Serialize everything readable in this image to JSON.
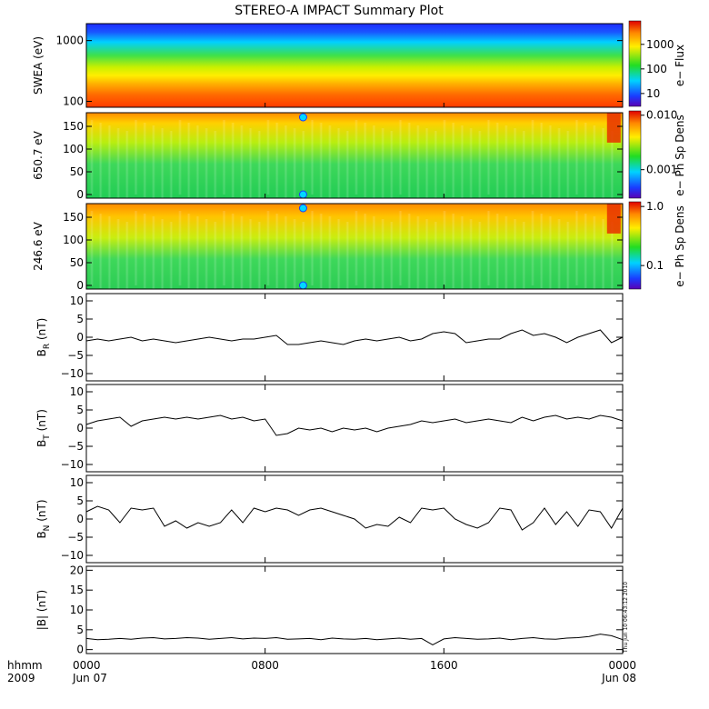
{
  "title": "STEREO-A IMPACT Summary Plot",
  "timestamp_text": "Thu Jun 10 06:43:12 2010",
  "time_axis": {
    "ticks": [
      {
        "hours": 0,
        "label": "0000",
        "date": "Jun 07"
      },
      {
        "hours": 8,
        "label": "0800",
        "date": ""
      },
      {
        "hours": 16,
        "label": "1600",
        "date": ""
      },
      {
        "hours": 24,
        "label": "0000",
        "date": "Jun 08"
      }
    ],
    "corner_label_top": "hhmm",
    "corner_label_bottom": "2009",
    "range_hours": [
      0,
      24
    ]
  },
  "spectrograms": [
    {
      "ylabel": "SWEA (eV)",
      "y_scale": "log",
      "ylim": [
        80,
        1900
      ],
      "yticks": [
        {
          "value": 100,
          "label": "100"
        },
        {
          "value": 1000,
          "label": "1000"
        }
      ],
      "colorbar": {
        "label": "e− Flux",
        "scale": "log",
        "range": [
          3,
          9000
        ],
        "ticks": [
          {
            "value": 10,
            "label": "10"
          },
          {
            "value": 100,
            "label": "100"
          },
          {
            "value": 1000,
            "label": "1000"
          }
        ]
      }
    },
    {
      "ylabel": "650.7 eV",
      "y_scale": "linear",
      "ylim": [
        -8,
        180
      ],
      "yticks": [
        {
          "value": 0,
          "label": "0"
        },
        {
          "value": 50,
          "label": "50"
        },
        {
          "value": 100,
          "label": "100"
        },
        {
          "value": 150,
          "label": "150"
        }
      ],
      "colorbar": {
        "label": "e− Ph Sp Dens",
        "scale": "log",
        "range": [
          0.0003,
          0.012
        ],
        "ticks": [
          {
            "value": 0.001,
            "label": "0.001"
          },
          {
            "value": 0.01,
            "label": "0.010"
          }
        ]
      }
    },
    {
      "ylabel": "246.6 eV",
      "y_scale": "linear",
      "ylim": [
        -8,
        180
      ],
      "yticks": [
        {
          "value": 0,
          "label": "0"
        },
        {
          "value": 50,
          "label": "50"
        },
        {
          "value": 100,
          "label": "100"
        },
        {
          "value": 150,
          "label": "150"
        }
      ],
      "colorbar": {
        "label": "e− Ph Sp Dens",
        "scale": "log",
        "range": [
          0.04,
          1.2
        ],
        "ticks": [
          {
            "value": 0.1,
            "label": "0.1"
          },
          {
            "value": 1.0,
            "label": "1.0"
          }
        ]
      }
    }
  ],
  "chart_data": [
    {
      "type": "line",
      "name": "BR",
      "ylabel_main": "B",
      "ylabel_sub": "R",
      "ylabel_unit": " (nT)",
      "ylim": [
        -12,
        12
      ],
      "yticks": [
        {
          "value": -10,
          "label": "−10"
        },
        {
          "value": -5,
          "label": "−5"
        },
        {
          "value": 0,
          "label": "0"
        },
        {
          "value": 5,
          "label": "5"
        },
        {
          "value": 10,
          "label": "10"
        }
      ],
      "x": [
        0,
        0.5,
        1,
        1.5,
        2,
        2.5,
        3,
        3.5,
        4,
        4.5,
        5,
        5.5,
        6,
        6.5,
        7,
        7.5,
        8,
        8.5,
        9,
        9.5,
        10,
        10.5,
        11,
        11.5,
        12,
        12.5,
        13,
        13.5,
        14,
        14.5,
        15,
        15.5,
        16,
        16.5,
        17,
        17.5,
        18,
        18.5,
        19,
        19.5,
        20,
        20.5,
        21,
        21.5,
        22,
        22.5,
        23,
        23.5,
        24
      ],
      "values": [
        -1,
        -0.5,
        -1,
        -0.5,
        0,
        -1,
        -0.5,
        -1,
        -1.5,
        -1,
        -0.5,
        0,
        -0.5,
        -1,
        -0.5,
        -0.5,
        0,
        0.5,
        -2,
        -2,
        -1.5,
        -1,
        -1.5,
        -2,
        -1,
        -0.5,
        -1,
        -0.5,
        0,
        -1,
        -0.5,
        1,
        1.5,
        1,
        -1.5,
        -1,
        -0.5,
        -0.5,
        1,
        2,
        0.5,
        1,
        0,
        -1.5,
        0,
        1,
        2,
        -1.5,
        0
      ]
    },
    {
      "type": "line",
      "name": "BT",
      "ylabel_main": "B",
      "ylabel_sub": "T",
      "ylabel_unit": " (nT)",
      "ylim": [
        -12,
        12
      ],
      "yticks": [
        {
          "value": -10,
          "label": "−10"
        },
        {
          "value": -5,
          "label": "−5"
        },
        {
          "value": 0,
          "label": "0"
        },
        {
          "value": 5,
          "label": "5"
        },
        {
          "value": 10,
          "label": "10"
        }
      ],
      "x": [
        0,
        0.5,
        1,
        1.5,
        2,
        2.5,
        3,
        3.5,
        4,
        4.5,
        5,
        5.5,
        6,
        6.5,
        7,
        7.5,
        8,
        8.5,
        9,
        9.5,
        10,
        10.5,
        11,
        11.5,
        12,
        12.5,
        13,
        13.5,
        14,
        14.5,
        15,
        15.5,
        16,
        16.5,
        17,
        17.5,
        18,
        18.5,
        19,
        19.5,
        20,
        20.5,
        21,
        21.5,
        22,
        22.5,
        23,
        23.5,
        24
      ],
      "values": [
        1,
        2,
        2.5,
        3,
        0.5,
        2,
        2.5,
        3,
        2.5,
        3,
        2.5,
        3,
        3.5,
        2.5,
        3,
        2,
        2.5,
        -2,
        -1.5,
        0,
        -0.5,
        0,
        -1,
        0,
        -0.5,
        0,
        -1,
        0,
        0.5,
        1,
        2,
        1.5,
        2,
        2.5,
        1.5,
        2,
        2.5,
        2,
        1.5,
        3,
        2,
        3,
        3.5,
        2.5,
        3,
        2.5,
        3.5,
        3,
        2
      ]
    },
    {
      "type": "line",
      "name": "BN",
      "ylabel_main": "B",
      "ylabel_sub": "N",
      "ylabel_unit": " (nT)",
      "ylim": [
        -12,
        12
      ],
      "yticks": [
        {
          "value": -10,
          "label": "−10"
        },
        {
          "value": -5,
          "label": "−5"
        },
        {
          "value": 0,
          "label": "0"
        },
        {
          "value": 5,
          "label": "5"
        },
        {
          "value": 10,
          "label": "10"
        }
      ],
      "x": [
        0,
        0.5,
        1,
        1.5,
        2,
        2.5,
        3,
        3.5,
        4,
        4.5,
        5,
        5.5,
        6,
        6.5,
        7,
        7.5,
        8,
        8.5,
        9,
        9.5,
        10,
        10.5,
        11,
        11.5,
        12,
        12.5,
        13,
        13.5,
        14,
        14.5,
        15,
        15.5,
        16,
        16.5,
        17,
        17.5,
        18,
        18.5,
        19,
        19.5,
        20,
        20.5,
        21,
        21.5,
        22,
        22.5,
        23,
        23.5,
        24
      ],
      "values": [
        2,
        3.5,
        2.5,
        -1,
        3,
        2.5,
        3,
        -2,
        -0.5,
        -2.5,
        -1,
        -2,
        -1,
        2.5,
        -1,
        3,
        2,
        3,
        2.5,
        1,
        2.5,
        3,
        2,
        1,
        0,
        -2.5,
        -1.5,
        -2,
        0.5,
        -1,
        3,
        2.5,
        3,
        0,
        -1.5,
        -2.5,
        -1,
        3,
        2.5,
        -3,
        -1,
        3,
        -1.5,
        2,
        -2,
        2.5,
        2,
        -2.5,
        3
      ]
    },
    {
      "type": "line",
      "name": "|B|",
      "ylabel_main": "|B|",
      "ylabel_sub": "",
      "ylabel_unit": " (nT)",
      "ylim": [
        -1,
        21
      ],
      "yticks": [
        {
          "value": 0,
          "label": "0"
        },
        {
          "value": 5,
          "label": "5"
        },
        {
          "value": 10,
          "label": "10"
        },
        {
          "value": 15,
          "label": "15"
        },
        {
          "value": 20,
          "label": "20"
        }
      ],
      "x": [
        0,
        0.5,
        1,
        1.5,
        2,
        2.5,
        3,
        3.5,
        4,
        4.5,
        5,
        5.5,
        6,
        6.5,
        7,
        7.5,
        8,
        8.5,
        9,
        9.5,
        10,
        10.5,
        11,
        11.5,
        12,
        12.5,
        13,
        13.5,
        14,
        14.5,
        15,
        15.5,
        16,
        16.5,
        17,
        17.5,
        18,
        18.5,
        19,
        19.5,
        20,
        20.5,
        21,
        21.5,
        22,
        22.5,
        23,
        23.5,
        24
      ],
      "values": [
        2.8,
        2.5,
        2.6,
        2.8,
        2.6,
        2.9,
        3,
        2.7,
        2.8,
        3,
        2.9,
        2.6,
        2.8,
        3,
        2.7,
        2.9,
        2.8,
        3,
        2.6,
        2.7,
        2.8,
        2.5,
        2.9,
        2.7,
        2.6,
        2.8,
        2.5,
        2.7,
        2.9,
        2.6,
        2.8,
        1.2,
        2.7,
        3,
        2.8,
        2.6,
        2.7,
        2.9,
        2.5,
        2.8,
        3,
        2.7,
        2.6,
        2.9,
        3,
        3.3,
        3.9,
        3.5,
        2.5
      ]
    }
  ]
}
